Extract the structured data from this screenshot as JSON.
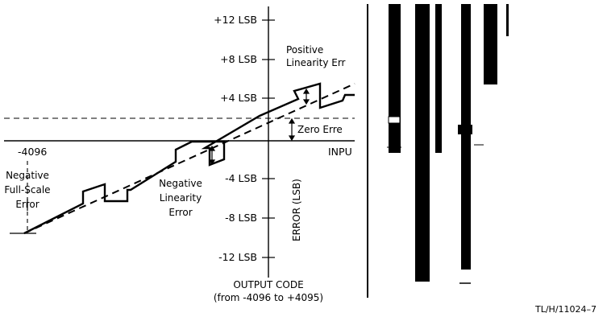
{
  "axis": {
    "y_ticks": [
      "+12 LSB",
      "+8 LSB",
      "+4 LSB",
      "-4 LSB",
      "-8 LSB",
      "-12 LSB"
    ],
    "y_label": "ERROR (LSB)",
    "x_left_label": "-4096",
    "x_right_label": "INPU",
    "x_title_line1": "OUTPUT CODE",
    "x_title_line2": "(from -4096 to +4095)"
  },
  "annotations": {
    "positive_line1": "Positive",
    "positive_line2": "Linearity Err",
    "zero_error": "Zero Erre",
    "negative_lin_line1": "Negative",
    "negative_lin_line2": "Linearity",
    "negative_lin_line3": "Error",
    "neg_fs_line1": "Negative",
    "neg_fs_line2": "Full-Scale",
    "neg_fs_line3": "Error"
  },
  "figure_id": "TL/H/11024–7",
  "colors": {
    "ink": "#000000",
    "background": "#ffffff"
  }
}
